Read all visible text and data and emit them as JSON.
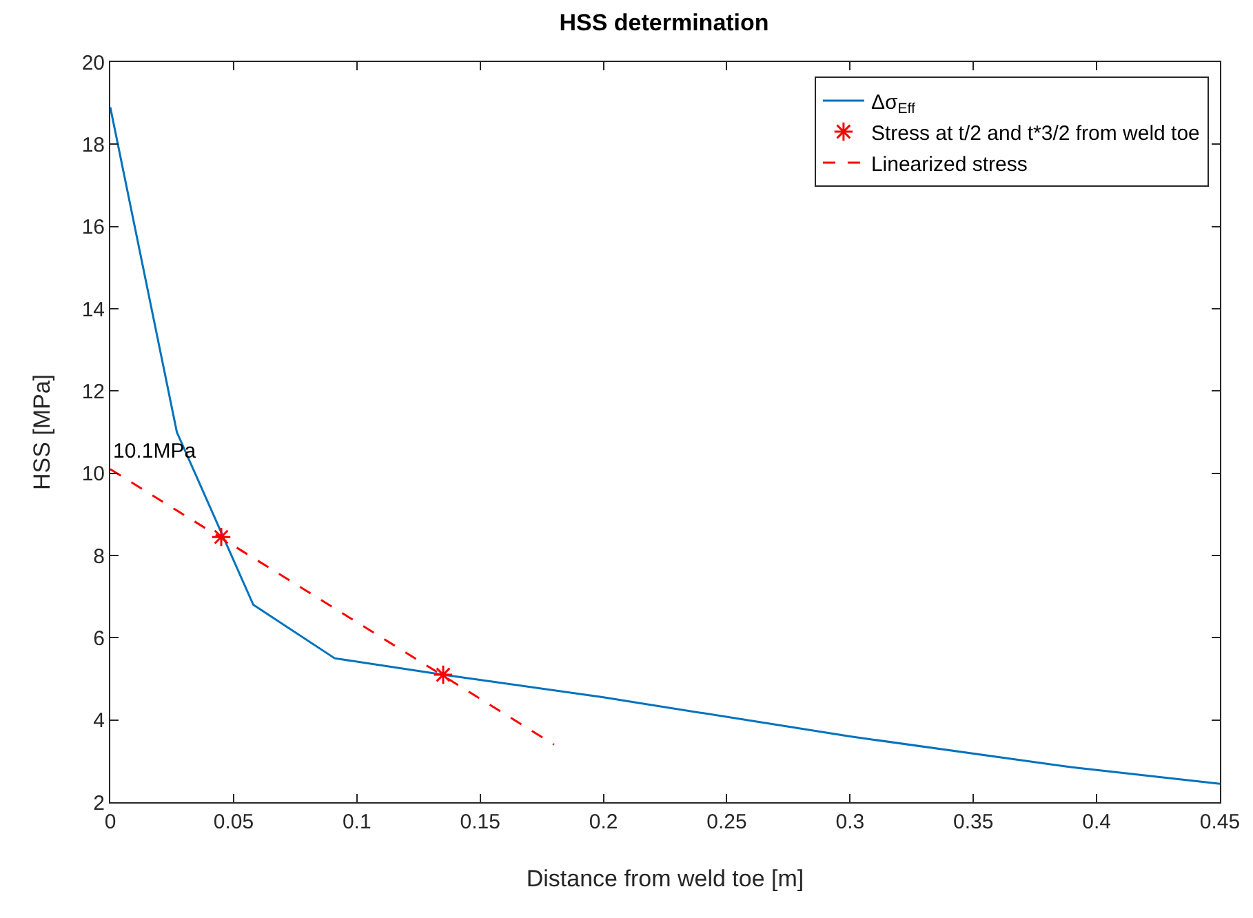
{
  "chart_data": {
    "type": "line",
    "title": "HSS determination",
    "xlabel": "Distance from weld toe [m]",
    "ylabel": "HSS [MPa]",
    "xlim": [
      0,
      0.45
    ],
    "xticks": [
      0,
      0.05,
      0.1,
      0.15,
      0.2,
      0.25,
      0.3,
      0.35,
      0.4,
      0.45
    ],
    "ylim": [
      2,
      20
    ],
    "yticks": [
      2,
      4,
      6,
      8,
      10,
      12,
      14,
      16,
      18,
      20
    ],
    "grid": false,
    "legend": "top right",
    "annotations": [
      {
        "text": "10.1MPa",
        "x": 0,
        "y": 10.1
      }
    ],
    "series": [
      {
        "name": "Δσ$_{Eff}$",
        "color": "#0072bd",
        "line_style": "solid",
        "marker": "none",
        "x": [
          0,
          0.027,
          0.058,
          0.091,
          0.135,
          0.2,
          0.3,
          0.39,
          0.45
        ],
        "values": [
          18.9,
          11.0,
          6.8,
          5.5,
          5.1,
          4.55,
          3.6,
          2.85,
          2.45
        ]
      },
      {
        "name": "Stress at t/2 and t*3/2 from weld toe",
        "type": "scatter",
        "color": "#ff0000",
        "marker": "cross",
        "x": [
          0.045,
          0.135
        ],
        "values": [
          8.45,
          5.1
        ]
      },
      {
        "name": "Linearized stress",
        "color": "#ff0000",
        "line_style": "dashed",
        "marker": "none",
        "x": [
          0,
          0.18
        ],
        "values": [
          10.1,
          3.4
        ]
      }
    ]
  }
}
